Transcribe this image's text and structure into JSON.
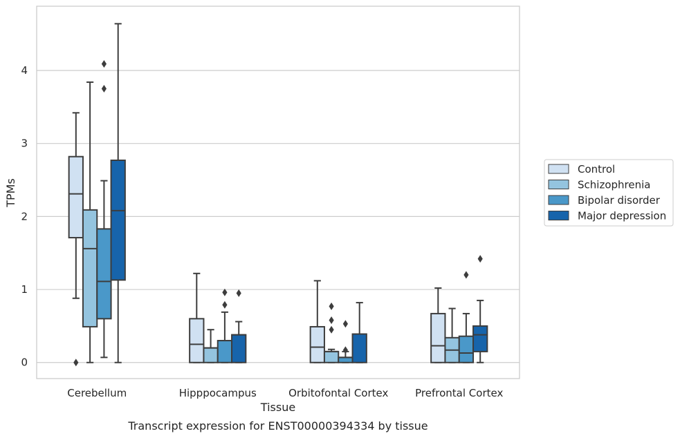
{
  "chart_data": {
    "type": "boxplot",
    "title": "",
    "caption": "Transcript expression for ENST00000394334 by tissue",
    "xlabel": "Tissue",
    "ylabel": "TPMs",
    "ylim": [
      -0.22,
      4.88
    ],
    "yticks": [
      0,
      1,
      2,
      3,
      4
    ],
    "grid": "horizontal",
    "legend_position": "right",
    "categories": [
      "Cerebellum",
      "Hipppocampus",
      "Orbitofontal Cortex",
      "Prefrontal Cortex"
    ],
    "series": [
      {
        "name": "Control",
        "color": "#d0e1f2",
        "boxes": [
          {
            "whislo": 0.88,
            "q1": 1.71,
            "med": 2.31,
            "q3": 2.82,
            "whishi": 3.42,
            "fliers": [
              0.0
            ]
          },
          {
            "whislo": 0.0,
            "q1": 0.0,
            "med": 0.25,
            "q3": 0.6,
            "whishi": 1.22,
            "fliers": []
          },
          {
            "whislo": 0.0,
            "q1": 0.0,
            "med": 0.21,
            "q3": 0.49,
            "whishi": 1.12,
            "fliers": []
          },
          {
            "whislo": 0.0,
            "q1": 0.0,
            "med": 0.23,
            "q3": 0.67,
            "whishi": 1.02,
            "fliers": []
          }
        ]
      },
      {
        "name": "Schizophrenia",
        "color": "#94c4df",
        "boxes": [
          {
            "whislo": 0.0,
            "q1": 0.49,
            "med": 1.56,
            "q3": 2.09,
            "whishi": 3.84,
            "fliers": []
          },
          {
            "whislo": 0.0,
            "q1": 0.0,
            "med": 0.2,
            "q3": 0.2,
            "whishi": 0.45,
            "fliers": []
          },
          {
            "whislo": 0.0,
            "q1": 0.0,
            "med": 0.15,
            "q3": 0.15,
            "whishi": 0.18,
            "fliers": [
              0.45,
              0.58,
              0.77
            ]
          },
          {
            "whislo": 0.0,
            "q1": 0.0,
            "med": 0.17,
            "q3": 0.34,
            "whishi": 0.74,
            "fliers": []
          }
        ]
      },
      {
        "name": "Bipolar disorder",
        "color": "#4a98c9",
        "boxes": [
          {
            "whislo": 0.07,
            "q1": 0.6,
            "med": 1.11,
            "q3": 1.83,
            "whishi": 2.49,
            "fliers": [
              3.75,
              4.09
            ]
          },
          {
            "whislo": 0.0,
            "q1": 0.0,
            "med": 0.3,
            "q3": 0.3,
            "whishi": 0.69,
            "fliers": [
              0.79,
              0.96
            ]
          },
          {
            "whislo": 0.0,
            "q1": 0.0,
            "med": 0.07,
            "q3": 0.07,
            "whishi": 0.15,
            "fliers": [
              0.17,
              0.53
            ]
          },
          {
            "whislo": 0.0,
            "q1": 0.0,
            "med": 0.13,
            "q3": 0.36,
            "whishi": 0.67,
            "fliers": [
              1.2
            ]
          }
        ]
      },
      {
        "name": "Major depression",
        "color": "#1764ab",
        "boxes": [
          {
            "whislo": 0.0,
            "q1": 1.13,
            "med": 2.08,
            "q3": 2.77,
            "whishi": 4.64,
            "fliers": []
          },
          {
            "whislo": 0.0,
            "q1": 0.0,
            "med": 0.38,
            "q3": 0.38,
            "whishi": 0.56,
            "fliers": [
              0.95
            ]
          },
          {
            "whislo": 0.0,
            "q1": 0.0,
            "med": 0.39,
            "q3": 0.39,
            "whishi": 0.82,
            "fliers": []
          },
          {
            "whislo": 0.0,
            "q1": 0.15,
            "med": 0.38,
            "q3": 0.5,
            "whishi": 0.85,
            "fliers": [
              1.42
            ]
          }
        ]
      }
    ]
  }
}
